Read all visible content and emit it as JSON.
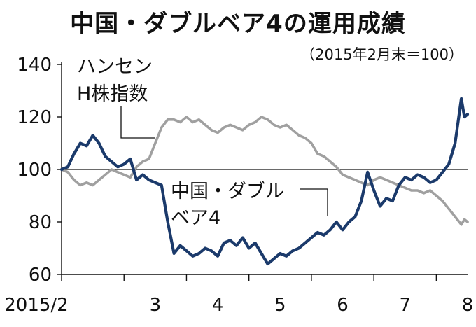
{
  "chart_data": {
    "type": "line",
    "title": "中国・ダブルベア4の運用成績",
    "subtitle": "（2015年2月末＝100）",
    "x_tick_labels": [
      "2015/2",
      "3",
      "4",
      "5",
      "6",
      "7",
      "8"
    ],
    "y_ticks": [
      60,
      80,
      100,
      120,
      140
    ],
    "ylim": [
      60,
      140
    ],
    "grid": false,
    "reference_line": 100,
    "series": [
      {
        "name": "中国・ダブルベア4",
        "color": "#1b3a6b",
        "x": [
          0.0,
          0.1,
          0.2,
          0.3,
          0.4,
          0.5,
          0.6,
          0.7,
          0.8,
          0.9,
          1.0,
          1.1,
          1.2,
          1.3,
          1.4,
          1.5,
          1.6,
          1.7,
          1.8,
          1.9,
          2.0,
          2.1,
          2.2,
          2.3,
          2.4,
          2.5,
          2.6,
          2.7,
          2.8,
          2.9,
          3.0,
          3.1,
          3.2,
          3.3,
          3.4,
          3.5,
          3.6,
          3.7,
          3.8,
          3.9,
          4.0,
          4.1,
          4.2,
          4.3,
          4.4,
          4.5,
          4.6,
          4.7,
          4.8,
          4.9,
          5.0,
          5.1,
          5.2,
          5.3,
          5.4,
          5.5,
          5.6,
          5.7,
          5.8,
          5.9,
          6.0,
          6.1,
          6.2,
          6.3,
          6.4,
          6.45,
          6.5
        ],
        "y": [
          100,
          101,
          106,
          110,
          109,
          113,
          110,
          105,
          103,
          101,
          102,
          104,
          96,
          98,
          96,
          95,
          94,
          80,
          68,
          71,
          69,
          67,
          68,
          70,
          69,
          67,
          72,
          73,
          71,
          74,
          70,
          72,
          68,
          64,
          66,
          68,
          67,
          69,
          70,
          72,
          74,
          76,
          75,
          77,
          80,
          77,
          80,
          82,
          88,
          99,
          92,
          86,
          89,
          88,
          94,
          97,
          96,
          98,
          97,
          95,
          96,
          99,
          102,
          110,
          127,
          120,
          121
        ]
      },
      {
        "name": "ハンセンH株指数",
        "color": "#a0a0a0",
        "x": [
          0.0,
          0.1,
          0.2,
          0.3,
          0.4,
          0.5,
          0.6,
          0.7,
          0.8,
          0.9,
          1.0,
          1.1,
          1.2,
          1.3,
          1.4,
          1.5,
          1.6,
          1.7,
          1.8,
          1.9,
          2.0,
          2.1,
          2.2,
          2.3,
          2.4,
          2.5,
          2.6,
          2.7,
          2.8,
          2.9,
          3.0,
          3.1,
          3.2,
          3.3,
          3.4,
          3.5,
          3.6,
          3.7,
          3.8,
          3.9,
          4.0,
          4.1,
          4.2,
          4.3,
          4.4,
          4.5,
          4.6,
          4.7,
          4.8,
          4.9,
          5.0,
          5.1,
          5.2,
          5.3,
          5.4,
          5.5,
          5.6,
          5.7,
          5.8,
          5.9,
          6.0,
          6.1,
          6.2,
          6.3,
          6.4,
          6.45,
          6.5
        ],
        "y": [
          100,
          99,
          96,
          94,
          95,
          94,
          96,
          98,
          100,
          99,
          98,
          97,
          101,
          103,
          104,
          110,
          116,
          119,
          119,
          118,
          120,
          118,
          119,
          117,
          115,
          114,
          116,
          117,
          116,
          115,
          117,
          118,
          120,
          119,
          117,
          116,
          117,
          115,
          113,
          112,
          110,
          106,
          105,
          103,
          101,
          98,
          97,
          96,
          95,
          94,
          96,
          97,
          96,
          95,
          94,
          93,
          92,
          92,
          91,
          92,
          90,
          88,
          85,
          82,
          79,
          81,
          80
        ]
      }
    ],
    "annotations": [
      {
        "lines": [
          "ハンセン",
          "H株指数"
        ]
      },
      {
        "lines": [
          "中国・ダブル",
          "ベア4"
        ]
      }
    ]
  }
}
